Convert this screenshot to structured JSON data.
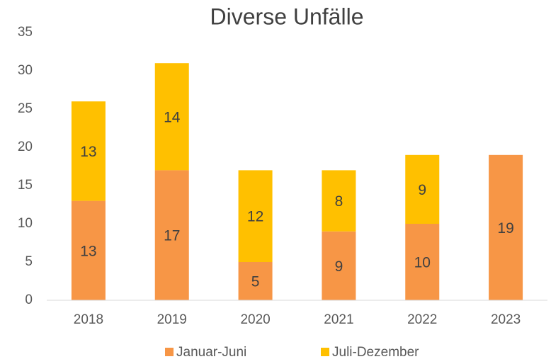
{
  "chart_data": {
    "type": "bar",
    "stacked": true,
    "title": "Diverse Unfälle",
    "categories": [
      "2018",
      "2019",
      "2020",
      "2021",
      "2022",
      "2023"
    ],
    "series": [
      {
        "name": "Januar-Juni",
        "color": "#f79646",
        "values": [
          13,
          17,
          5,
          9,
          10,
          19
        ]
      },
      {
        "name": "Juli-Dezember",
        "color": "#ffc000",
        "values": [
          13,
          14,
          12,
          8,
          9,
          null
        ]
      }
    ],
    "ylim": [
      0,
      35
    ],
    "yticks": [
      0,
      5,
      10,
      15,
      20,
      25,
      30,
      35
    ],
    "grid": false,
    "legend": "bottom"
  }
}
